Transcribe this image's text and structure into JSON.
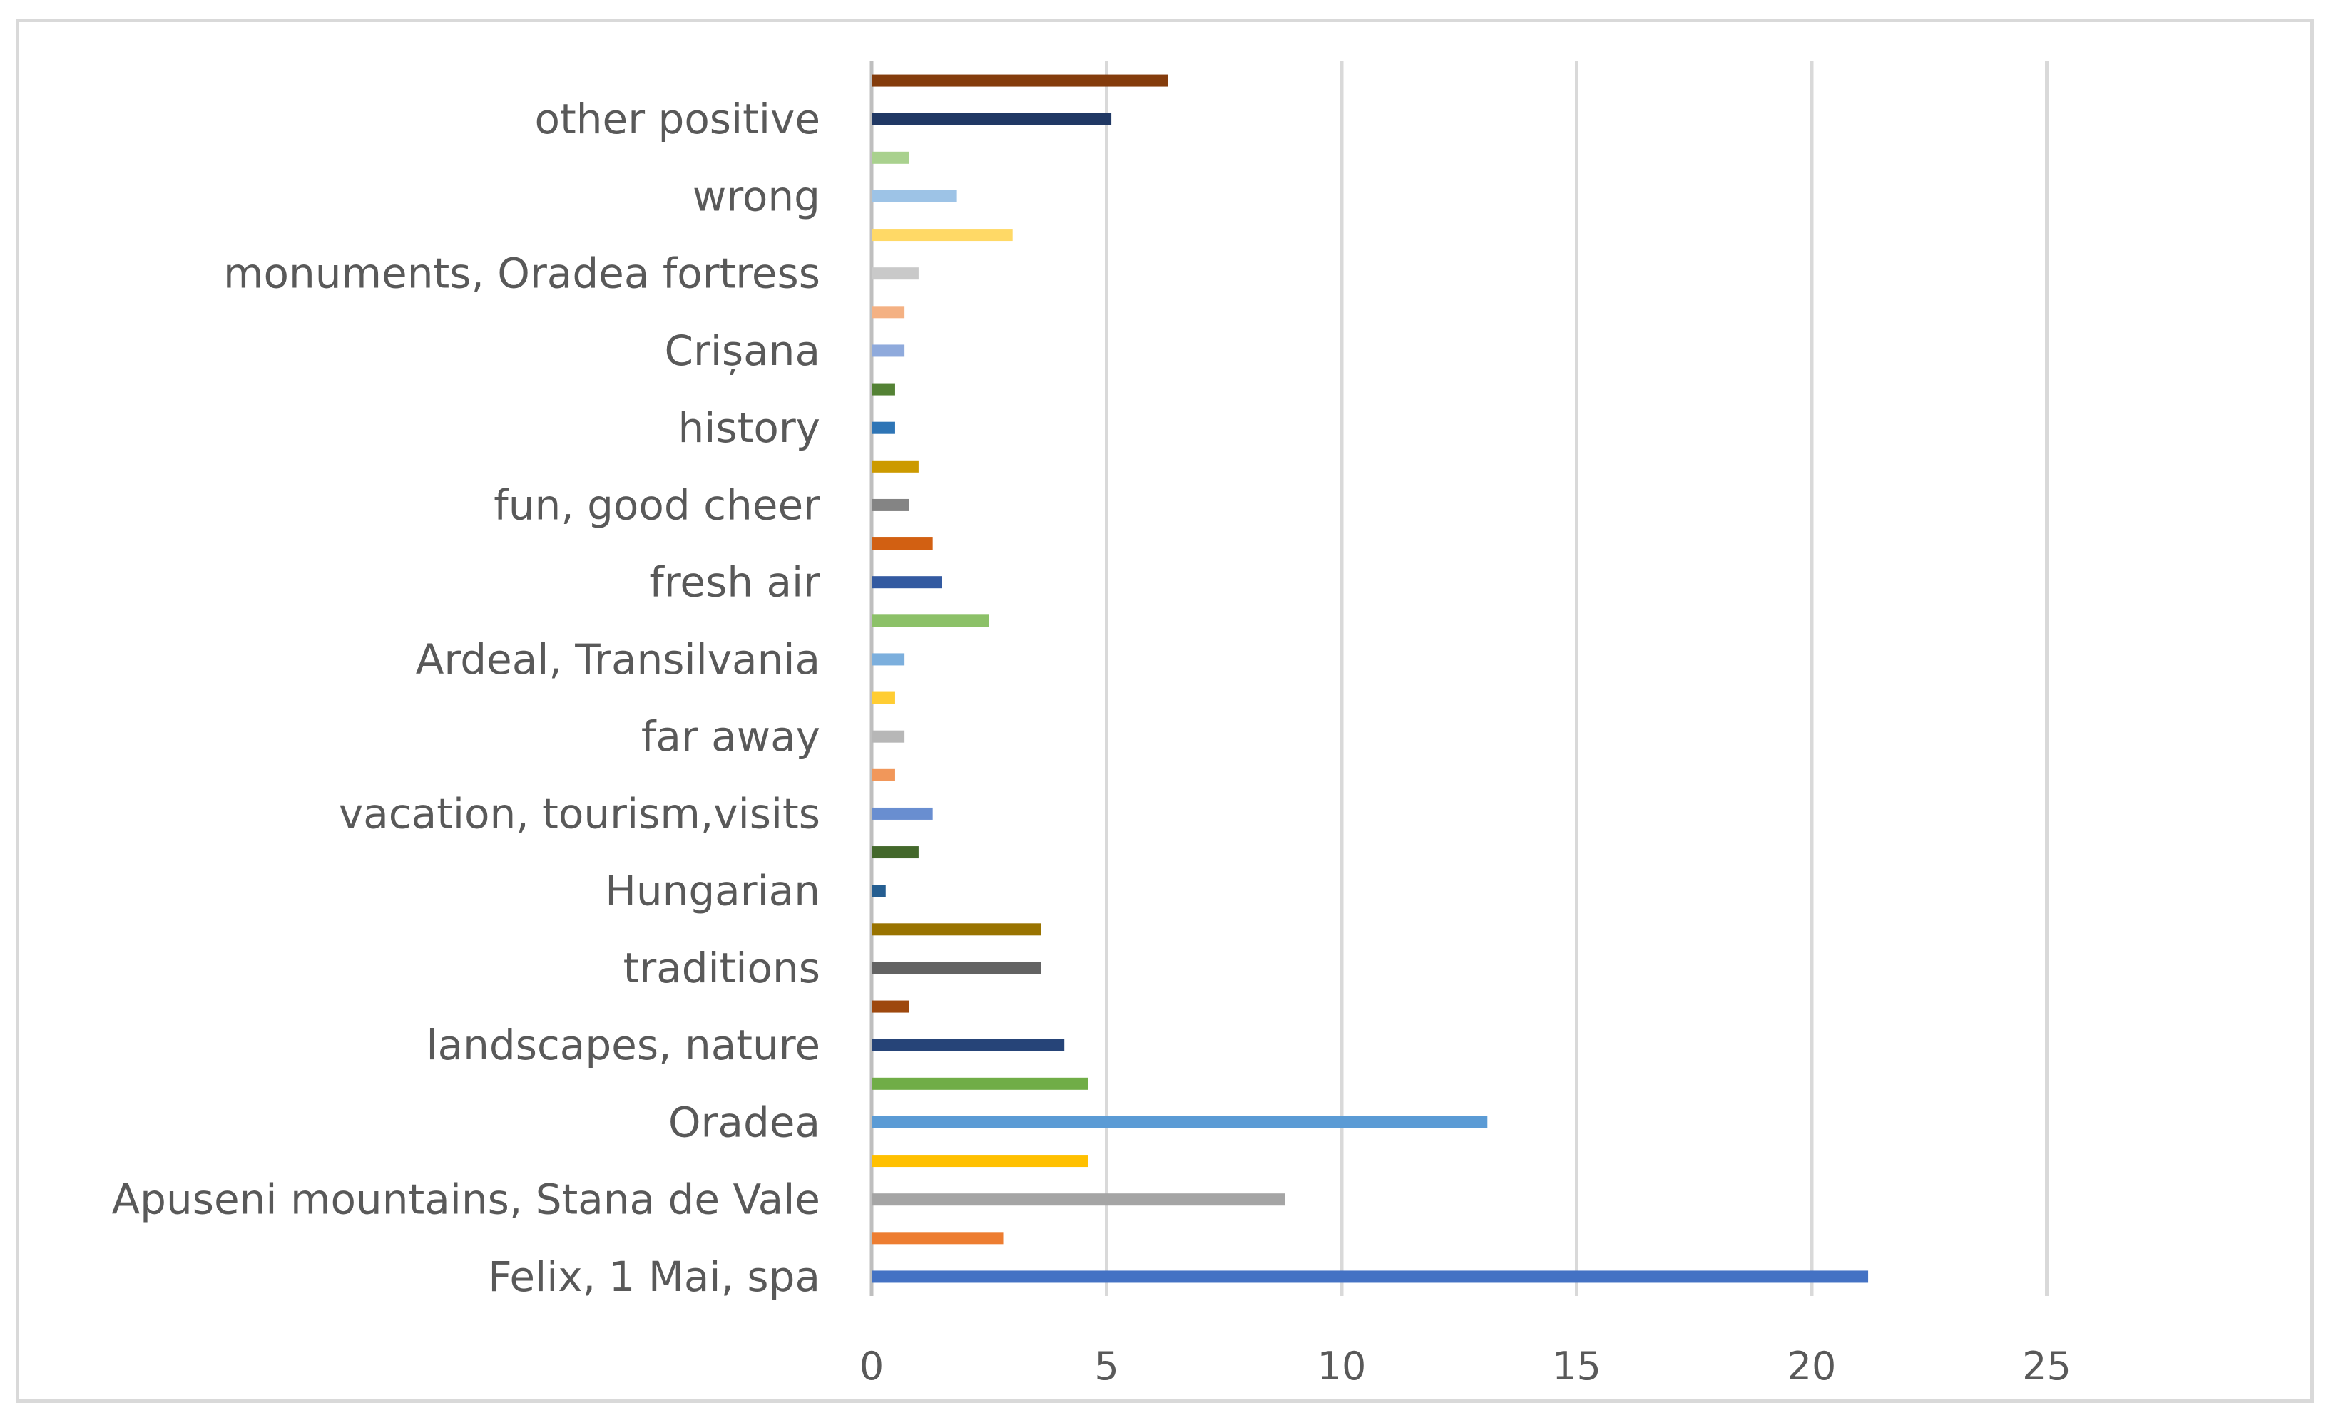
{
  "chart_data": {
    "type": "bar",
    "orientation": "horizontal",
    "title": "",
    "xlabel": "",
    "ylabel": "",
    "xlim": [
      0,
      30
    ],
    "x_ticks": [
      0,
      5,
      10,
      15,
      20,
      25
    ],
    "grid": "vertical",
    "legend": "none",
    "categories": [
      "Felix, 1 Mai, spa",
      "Apuseni mountains, Stana de Vale",
      "Oradea",
      "landscapes, nature",
      "traditions",
      "Hungarian",
      "vacation, tourism,visits",
      "far away",
      "Ardeal, Transilvania",
      "fresh air",
      "fun, good cheer",
      "history",
      "Crișana",
      "monuments, Oradea fortress",
      "wrong",
      "other positive"
    ],
    "bars": [
      {
        "value": 21.2,
        "color": "#4472c4"
      },
      {
        "value": 2.8,
        "color": "#ed7d31"
      },
      {
        "value": 8.8,
        "color": "#a5a5a5"
      },
      {
        "value": 4.6,
        "color": "#ffc000"
      },
      {
        "value": 13.1,
        "color": "#5b9bd5"
      },
      {
        "value": 4.6,
        "color": "#70ad47"
      },
      {
        "value": 4.1,
        "color": "#264478"
      },
      {
        "value": 0.8,
        "color": "#9e480e"
      },
      {
        "value": 3.6,
        "color": "#636363"
      },
      {
        "value": 3.6,
        "color": "#997300"
      },
      {
        "value": 0.3,
        "color": "#255e91"
      },
      {
        "value": 1.0,
        "color": "#43682b"
      },
      {
        "value": 1.3,
        "color": "#698ed0"
      },
      {
        "value": 0.5,
        "color": "#f1975a"
      },
      {
        "value": 0.7,
        "color": "#b7b7b7"
      },
      {
        "value": 0.5,
        "color": "#ffcd33"
      },
      {
        "value": 0.7,
        "color": "#7cafdd"
      },
      {
        "value": 2.5,
        "color": "#8cc168"
      },
      {
        "value": 1.5,
        "color": "#335aa1"
      },
      {
        "value": 1.3,
        "color": "#d26012"
      },
      {
        "value": 0.8,
        "color": "#848484"
      },
      {
        "value": 1.0,
        "color": "#cc9a00"
      },
      {
        "value": 0.5,
        "color": "#2e75b6"
      },
      {
        "value": 0.5,
        "color": "#548235"
      },
      {
        "value": 0.7,
        "color": "#8faadc"
      },
      {
        "value": 0.7,
        "color": "#f4b183"
      },
      {
        "value": 1.0,
        "color": "#c9c9c9"
      },
      {
        "value": 3.0,
        "color": "#ffd966"
      },
      {
        "value": 1.8,
        "color": "#9dc3e6"
      },
      {
        "value": 0.8,
        "color": "#a9d18e"
      },
      {
        "value": 5.1,
        "color": "#203864"
      },
      {
        "value": 6.3,
        "color": "#843c0c"
      }
    ],
    "colors": {
      "grid": "#d9d9d9",
      "axis": "#bfbfbf",
      "text": "#595959",
      "frame": "#d9d9d9"
    }
  }
}
